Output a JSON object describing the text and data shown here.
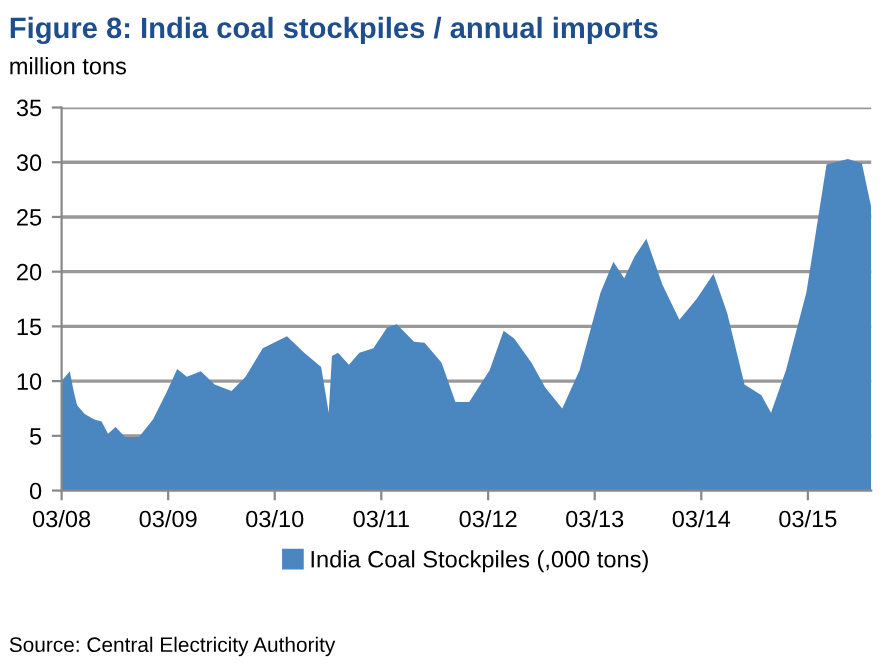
{
  "chart_data": {
    "type": "area",
    "title": "Figure 8: India coal stockpiles / annual imports",
    "subtitle": "million tons",
    "annotations": [
      "Source: Central Electricity Authority"
    ],
    "x": [
      "2008-03-01",
      "2008-03-29",
      "2008-04-12",
      "2008-04-23",
      "2008-05-19",
      "2008-06-21",
      "2008-07-16",
      "2008-08-07",
      "2008-09-02",
      "2008-10-04",
      "2008-11-21",
      "2009-01-08",
      "2009-02-24",
      "2009-04-01",
      "2009-05-04",
      "2009-06-21",
      "2009-08-07",
      "2009-10-04",
      "2009-11-21",
      "2010-01-19",
      "2010-04-12",
      "2010-06-10",
      "2010-08-07",
      "2010-09-02",
      "2010-09-13",
      "2010-10-04",
      "2010-11-10",
      "2010-12-16",
      "2011-02-02",
      "2011-03-21",
      "2011-04-23",
      "2011-06-21",
      "2011-07-27",
      "2011-09-23",
      "2011-11-10",
      "2011-12-27",
      "2012-03-06",
      "2012-04-23",
      "2012-05-29",
      "2012-07-27",
      "2012-09-13",
      "2012-11-10",
      "2013-01-08",
      "2013-03-21",
      "2013-05-04",
      "2013-06-10",
      "2013-07-16",
      "2013-08-25",
      "2013-10-19",
      "2013-12-16",
      "2014-02-13",
      "2014-04-12",
      "2014-05-29",
      "2014-07-27",
      "2014-09-23",
      "2014-10-26",
      "2014-12-16",
      "2015-02-24",
      "2015-05-04",
      "2015-07-16",
      "2015-09-02",
      "2015-10-04"
    ],
    "series": [
      {
        "name": "India Coal Stockpiles (,000 tons)",
        "color": "#4a86c0",
        "values": [
          10,
          10.9,
          9,
          7.8,
          7,
          6.5,
          6.3,
          5.2,
          5.8,
          4.9,
          4.9,
          6.5,
          9,
          11.1,
          10.4,
          10.9,
          9.7,
          9.1,
          10.4,
          13,
          14.1,
          12.6,
          11.3,
          7.1,
          12.3,
          12.6,
          11.5,
          12.6,
          13,
          14.9,
          15.2,
          13.6,
          13.5,
          11.7,
          8.1,
          8.1,
          11,
          14.6,
          13.9,
          11.7,
          9.4,
          7.5,
          11,
          18.1,
          20.9,
          19.4,
          21.4,
          23,
          18.8,
          15.6,
          17.5,
          19.8,
          16.2,
          9.7,
          8.7,
          7.1,
          11,
          18.1,
          29.8,
          30.3,
          29.9,
          25.9
        ]
      }
    ],
    "xlim": [
      "2008-03-01",
      "2015-10-04"
    ],
    "xticks": [
      {
        "value": "2008-03-01",
        "label": "03/08"
      },
      {
        "value": "2009-03-01",
        "label": "03/09"
      },
      {
        "value": "2010-03-01",
        "label": "03/10"
      },
      {
        "value": "2011-03-01",
        "label": "03/11"
      },
      {
        "value": "2012-03-01",
        "label": "03/12"
      },
      {
        "value": "2013-03-01",
        "label": "03/13"
      },
      {
        "value": "2014-03-01",
        "label": "03/14"
      },
      {
        "value": "2015-03-01",
        "label": "03/15"
      }
    ],
    "ylim": [
      0,
      35
    ],
    "yticks": [
      0,
      5,
      10,
      15,
      20,
      25,
      30,
      35
    ],
    "grid": "y",
    "legend": "bottom"
  }
}
